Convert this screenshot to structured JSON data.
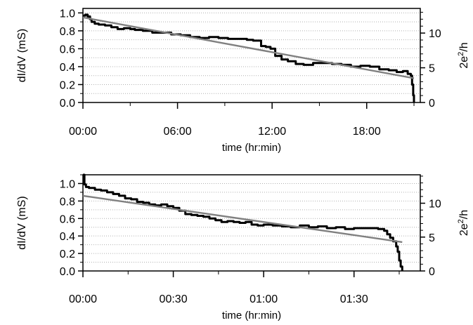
{
  "chart_data": [
    {
      "type": "line",
      "xlabel": "time (hr:min)",
      "ylabel": "dI/dV (mS)",
      "y2label_base": "2e",
      "y2label_sup": "2",
      "y2label_tail": "/h",
      "xlim": [
        0,
        21.4
      ],
      "ylim": [
        0,
        1.05
      ],
      "y2lim": [
        0,
        13.55
      ],
      "x_ticks": [
        0,
        6,
        12,
        18
      ],
      "x_tick_labels": [
        "00:00",
        "06:00",
        "12:00",
        "18:00"
      ],
      "y_ticks": [
        0.0,
        0.2,
        0.4,
        0.6,
        0.8,
        1.0
      ],
      "y_tick_labels": [
        "0.0",
        "0.2",
        "0.4",
        "0.6",
        "0.8",
        "1.0"
      ],
      "y2_ticks": [
        0,
        5,
        10
      ],
      "y2_tick_labels": [
        "0",
        "5",
        "10"
      ],
      "grid": "horizontal-dotted",
      "series": [
        {
          "color": "#000000",
          "x": [
            0,
            0.15,
            0.3,
            0.45,
            0.55,
            0.75,
            1.0,
            1.4,
            1.8,
            2.2,
            2.6,
            3.0,
            3.3,
            3.8,
            4.4,
            5.0,
            5.6,
            6.2,
            6.8,
            7.4,
            8.0,
            8.6,
            9.2,
            9.8,
            10.4,
            10.8,
            11.3,
            11.6,
            11.9,
            12.2,
            12.6,
            13.0,
            13.5,
            14.0,
            14.6,
            15.2,
            15.8,
            16.4,
            17.0,
            17.6,
            18.2,
            18.8,
            19.4,
            19.9,
            20.3,
            20.6,
            20.8,
            20.88,
            20.95,
            21.0
          ],
          "values": [
            0.97,
            0.98,
            0.96,
            0.93,
            0.9,
            0.88,
            0.87,
            0.86,
            0.84,
            0.82,
            0.83,
            0.82,
            0.81,
            0.8,
            0.78,
            0.78,
            0.76,
            0.75,
            0.73,
            0.72,
            0.73,
            0.72,
            0.71,
            0.71,
            0.7,
            0.69,
            0.63,
            0.62,
            0.6,
            0.52,
            0.48,
            0.46,
            0.43,
            0.42,
            0.44,
            0.44,
            0.43,
            0.42,
            0.4,
            0.41,
            0.4,
            0.37,
            0.36,
            0.34,
            0.35,
            0.32,
            0.3,
            0.2,
            0.08,
            0.0
          ]
        },
        {
          "color": "#808080",
          "x": [
            0,
            21
          ],
          "values": [
            0.95,
            0.27
          ]
        }
      ]
    },
    {
      "type": "line",
      "xlabel": "time (hr:min)",
      "ylabel": "dI/dV (mS)",
      "y2label_base": "2e",
      "y2label_sup": "2",
      "y2label_tail": "/h",
      "xlim": [
        0,
        112
      ],
      "ylim": [
        0,
        1.1
      ],
      "y2lim": [
        0,
        14.2
      ],
      "x_ticks": [
        0,
        30,
        60,
        90
      ],
      "x_tick_labels": [
        "00:00",
        "00:30",
        "01:00",
        "01:30"
      ],
      "y_ticks": [
        0.0,
        0.2,
        0.4,
        0.6,
        0.8,
        1.0
      ],
      "y_tick_labels": [
        "0.0",
        "0.2",
        "0.4",
        "0.6",
        "0.8",
        "1.0"
      ],
      "y2_ticks": [
        0,
        5,
        10
      ],
      "y2_tick_labels": [
        "0",
        "5",
        "10"
      ],
      "grid": "horizontal-dotted",
      "series": [
        {
          "color": "#000000",
          "x": [
            0,
            0.5,
            1,
            2,
            4,
            6,
            8,
            10,
            12,
            14,
            16,
            18,
            20,
            22,
            24,
            26,
            28,
            30,
            32,
            34,
            36,
            38,
            40,
            42,
            44,
            46,
            48,
            50,
            52,
            54,
            56,
            58,
            60,
            63,
            66,
            69,
            72,
            75,
            78,
            81,
            84,
            87,
            90,
            93,
            96,
            98,
            100,
            101,
            102,
            103,
            104,
            104.5,
            105,
            105.5,
            106
          ],
          "values": [
            1.1,
            0.99,
            0.96,
            0.95,
            0.93,
            0.92,
            0.9,
            0.88,
            0.86,
            0.83,
            0.82,
            0.79,
            0.78,
            0.76,
            0.75,
            0.76,
            0.74,
            0.72,
            0.69,
            0.65,
            0.64,
            0.63,
            0.62,
            0.6,
            0.58,
            0.56,
            0.57,
            0.56,
            0.55,
            0.56,
            0.53,
            0.52,
            0.53,
            0.52,
            0.51,
            0.5,
            0.52,
            0.5,
            0.51,
            0.49,
            0.5,
            0.48,
            0.49,
            0.49,
            0.49,
            0.48,
            0.46,
            0.42,
            0.38,
            0.34,
            0.28,
            0.22,
            0.12,
            0.05,
            0.0
          ]
        },
        {
          "color": "#808080",
          "x": [
            0,
            106
          ],
          "values": [
            0.86,
            0.33
          ]
        }
      ]
    }
  ]
}
